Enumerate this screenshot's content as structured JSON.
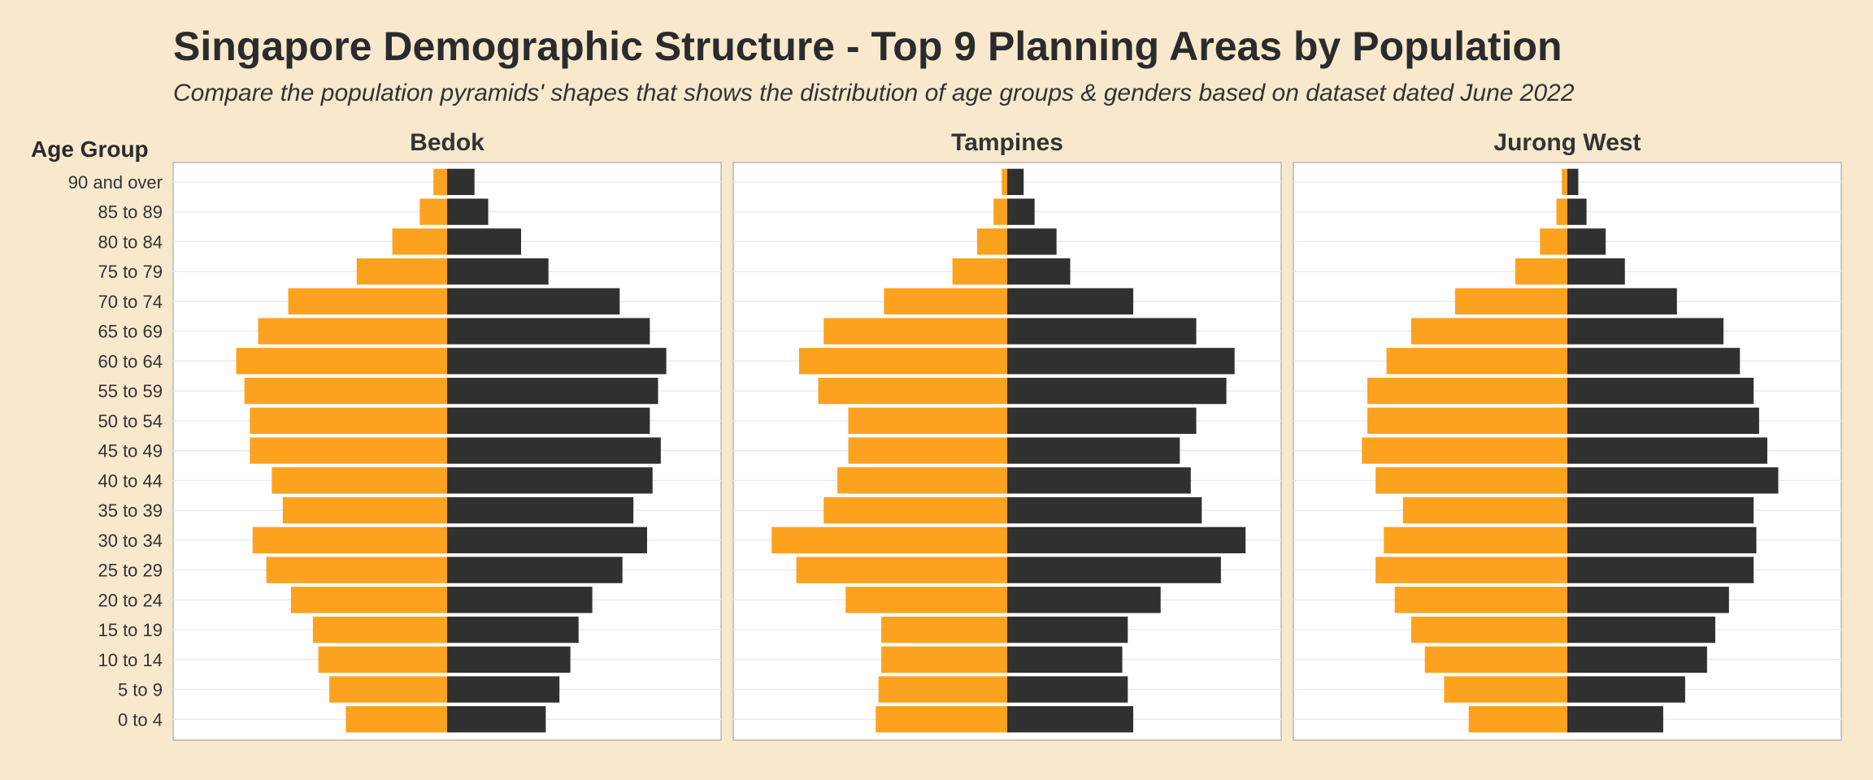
{
  "title": "Singapore Demographic Structure - Top 9 Planning Areas by Population",
  "subtitle": "Compare the population pyramids' shapes that shows the distribution of age groups & genders based on dataset dated June 2022",
  "chart_data": {
    "type": "bar",
    "orientation": "horizontal-pyramid",
    "ylabel": "Age Group",
    "colors": {
      "females": "#fda21f",
      "males": "#303030",
      "panel_bg": "#ffffff",
      "page_bg": "#f8e8cd"
    },
    "categories": [
      "0 to 4",
      "5 to 9",
      "10 to 14",
      "15 to 19",
      "20 to 24",
      "25 to 29",
      "30 to 34",
      "35 to 39",
      "40 to 44",
      "45 to 49",
      "50 to 54",
      "55 to 59",
      "60 to 64",
      "65 to 69",
      "70 to 74",
      "75 to 79",
      "80 to 84",
      "85 to 89",
      "90 and over"
    ],
    "xlim": [
      -10000,
      10000
    ],
    "panels": [
      {
        "title": "Bedok",
        "series": [
          {
            "values": [
              -3700,
              -4300,
              -4700,
              -4900,
              -5700,
              -6600,
              -7100,
              -6000,
              -6400,
              -7200,
              -7200,
              -7400,
              -7700,
              -6900,
              -5800,
              -3300,
              -2000,
              -1000,
              -500
            ]
          },
          {
            "values": [
              3600,
              4100,
              4500,
              4800,
              5300,
              6400,
              7300,
              6800,
              7500,
              7800,
              7400,
              7700,
              8000,
              7400,
              6300,
              3700,
              2700,
              1500,
              1000
            ]
          }
        ]
      },
      {
        "title": "Tampines",
        "series": [
          {
            "values": [
              -4800,
              -4700,
              -4600,
              -4600,
              -5900,
              -7700,
              -8600,
              -6700,
              -6200,
              -5800,
              -5800,
              -6900,
              -7600,
              -6700,
              -4500,
              -2000,
              -1100,
              -500,
              -200
            ]
          },
          {
            "values": [
              4600,
              4400,
              4200,
              4400,
              5600,
              7800,
              8700,
              7100,
              6700,
              6300,
              6900,
              8000,
              8300,
              6900,
              4600,
              2300,
              1800,
              1000,
              600
            ]
          }
        ]
      },
      {
        "title": "Jurong West",
        "series": [
          {
            "values": [
              -3600,
              -4500,
              -5200,
              -5700,
              -6300,
              -7000,
              -6700,
              -6000,
              -7000,
              -7500,
              -7300,
              -7300,
              -6600,
              -5700,
              -4100,
              -1900,
              -1000,
              -400,
              -200
            ]
          },
          {
            "values": [
              3500,
              4300,
              5100,
              5400,
              5900,
              6800,
              6900,
              6800,
              7700,
              7300,
              7000,
              6800,
              6300,
              5700,
              4000,
              2100,
              1400,
              700,
              400
            ]
          }
        ]
      }
    ]
  }
}
